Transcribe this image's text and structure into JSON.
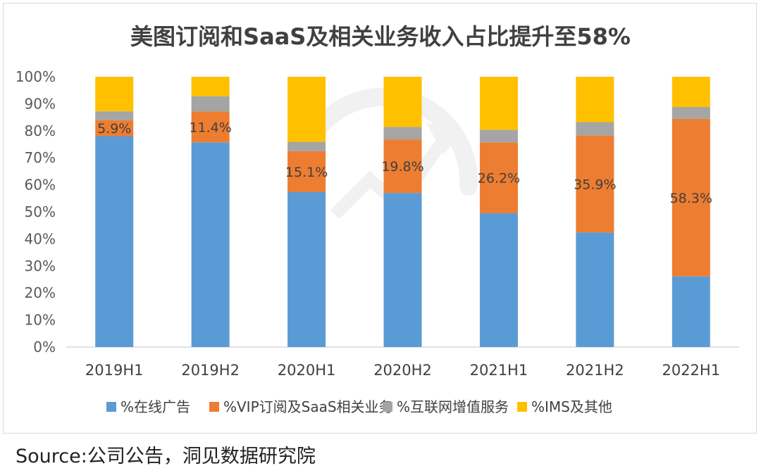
{
  "source": {
    "label": "Source:",
    "text": "公司公告，洞见数据研究院"
  },
  "chart_data": {
    "type": "bar",
    "stacked": true,
    "title": "美图订阅和SaaS及相关业务收入占比提升至58%",
    "xlabel": "",
    "ylabel": "",
    "ylim": [
      0,
      100
    ],
    "yticks": [
      "0%",
      "10%",
      "20%",
      "30%",
      "40%",
      "50%",
      "60%",
      "70%",
      "80%",
      "90%",
      "100%"
    ],
    "grid": false,
    "legend_position": "bottom",
    "categories": [
      "2019H1",
      "2019H2",
      "2020H1",
      "2020H2",
      "2021H1",
      "2021H2",
      "2022H1"
    ],
    "series": [
      {
        "name": "%在线广告",
        "color": "#5b9bd5",
        "values": [
          78.0,
          75.7,
          57.3,
          57.0,
          49.5,
          42.4,
          26.1
        ]
      },
      {
        "name": "%VIP订阅及SaaS相关业务",
        "color": "#ed7d31",
        "values": [
          5.9,
          11.4,
          15.1,
          19.8,
          26.2,
          35.9,
          58.3
        ]
      },
      {
        "name": "%互联网增值服务",
        "color": "#a5a5a5",
        "values": [
          3.3,
          5.7,
          3.5,
          4.6,
          4.7,
          4.9,
          4.4
        ]
      },
      {
        "name": "%IMS及其他",
        "color": "#ffc000",
        "values": [
          12.8,
          7.2,
          24.1,
          18.6,
          19.6,
          16.8,
          11.2
        ]
      }
    ],
    "data_labels": [
      "5.9%",
      "11.4%",
      "15.1%",
      "19.8%",
      "26.2%",
      "35.9%",
      "58.3%"
    ]
  }
}
